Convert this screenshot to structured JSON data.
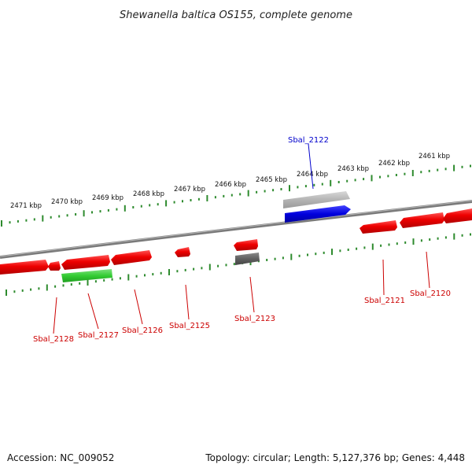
{
  "title": "Shewanella baltica OS155, complete genome",
  "footer": {
    "accession": "Accession: NC_009052",
    "summary": "Topology: circular; Length: 5,127,376 bp; Genes: 4,448"
  },
  "colors": {
    "backbone": "#808080",
    "ticks": "#2e8b2e",
    "gene_red": "#ee0000",
    "gene_green": "#2ecc2e",
    "gene_blue": "#0000dd",
    "gene_lightgray": "#b0b0b0",
    "gene_darkgray": "#606060",
    "label_red": "#cc0000",
    "label_blue": "#0000cc"
  },
  "kbp_labels": [
    "2471 kbp",
    "2470 kbp",
    "2469 kbp",
    "2468 kbp",
    "2467 kbp",
    "2466 kbp",
    "2465 kbp",
    "2464 kbp",
    "2463 kbp",
    "2462 kbp",
    "2461 kbp"
  ],
  "gene_labels": [
    {
      "text": "Sbal_2122",
      "color": "blue"
    },
    {
      "text": "Sbal_2128",
      "color": "red"
    },
    {
      "text": "Sbal_2127",
      "color": "red"
    },
    {
      "text": "Sbal_2126",
      "color": "red"
    },
    {
      "text": "Sbal_2125",
      "color": "red"
    },
    {
      "text": "Sbal_2123",
      "color": "red"
    },
    {
      "text": "Sbal_2121",
      "color": "red"
    },
    {
      "text": "Sbal_2120",
      "color": "red"
    }
  ]
}
